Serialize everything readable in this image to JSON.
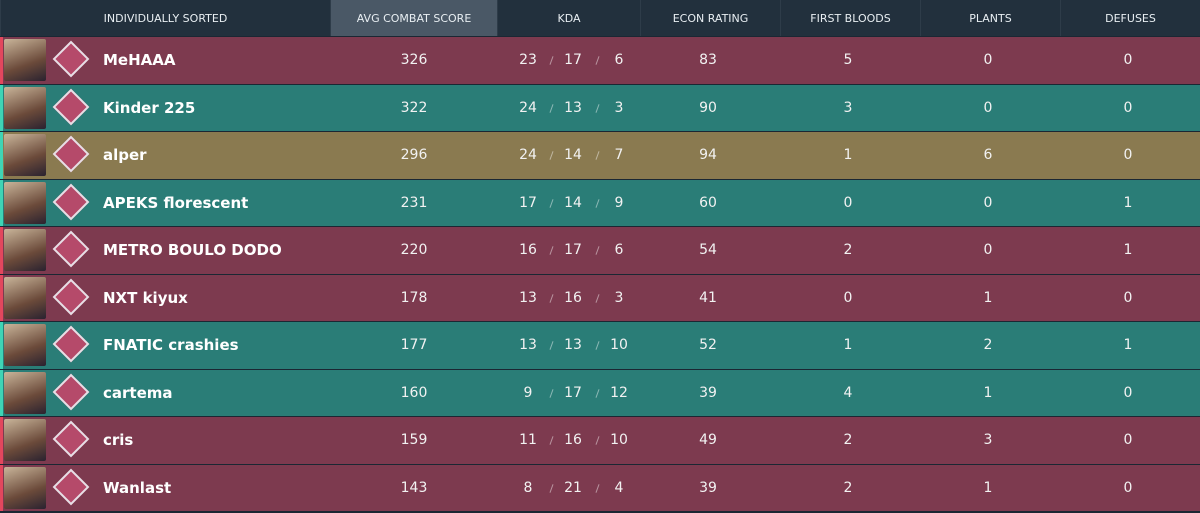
{
  "headers": [
    "INDIVIDUALLY SORTED",
    "AVG COMBAT SCORE",
    "KDA",
    "ECON RATING",
    "FIRST BLOODS",
    "PLANTS",
    "DEFUSES"
  ],
  "rows": [
    {
      "name": "MeHAAA",
      "acs": 326,
      "kills": 23,
      "deaths": 17,
      "assists": 6,
      "econ": 83,
      "first_bloods": 5,
      "plants": 0,
      "defuses": 0,
      "color": "#7d3a4f",
      "stripe": "#e2475d"
    },
    {
      "name": "Kinder 225",
      "acs": 322,
      "kills": 24,
      "deaths": 13,
      "assists": 3,
      "econ": 90,
      "first_bloods": 3,
      "plants": 0,
      "defuses": 0,
      "color": "#2a7d77",
      "stripe": "#3fd4b5"
    },
    {
      "name": "alper",
      "acs": 296,
      "kills": 24,
      "deaths": 14,
      "assists": 7,
      "econ": 94,
      "first_bloods": 1,
      "plants": 6,
      "defuses": 0,
      "color": "#8a7a50",
      "stripe": "#3fd4b5"
    },
    {
      "name": "APEKS florescent",
      "acs": 231,
      "kills": 17,
      "deaths": 14,
      "assists": 9,
      "econ": 60,
      "first_bloods": 0,
      "plants": 0,
      "defuses": 1,
      "color": "#2a7d77",
      "stripe": "#3fd4b5"
    },
    {
      "name": "METRO BOULO DODO",
      "acs": 220,
      "kills": 16,
      "deaths": 17,
      "assists": 6,
      "econ": 54,
      "first_bloods": 2,
      "plants": 0,
      "defuses": 1,
      "color": "#7d3a4f",
      "stripe": "#e2475d"
    },
    {
      "name": "NXT kiyux",
      "acs": 178,
      "kills": 13,
      "deaths": 16,
      "assists": 3,
      "econ": 41,
      "first_bloods": 0,
      "plants": 1,
      "defuses": 0,
      "color": "#7d3a4f",
      "stripe": "#e2475d"
    },
    {
      "name": "FNATIC crashies",
      "acs": 177,
      "kills": 13,
      "deaths": 13,
      "assists": 10,
      "econ": 52,
      "first_bloods": 1,
      "plants": 2,
      "defuses": 1,
      "color": "#2a7d77",
      "stripe": "#3fd4b5"
    },
    {
      "name": "cartema",
      "acs": 160,
      "kills": 9,
      "deaths": 17,
      "assists": 12,
      "econ": 39,
      "first_bloods": 4,
      "plants": 1,
      "defuses": 0,
      "color": "#2a7d77",
      "stripe": "#3fd4b5"
    },
    {
      "name": "cris",
      "acs": 159,
      "kills": 11,
      "deaths": 16,
      "assists": 10,
      "econ": 49,
      "first_bloods": 2,
      "plants": 3,
      "defuses": 0,
      "color": "#7d3a4f",
      "stripe": "#e2475d"
    },
    {
      "name": "Wanlast",
      "acs": 143,
      "kills": 8,
      "deaths": 21,
      "assists": 4,
      "econ": 39,
      "first_bloods": 2,
      "plants": 1,
      "defuses": 0,
      "color": "#7d3a4f",
      "stripe": "#e2475d"
    }
  ]
}
